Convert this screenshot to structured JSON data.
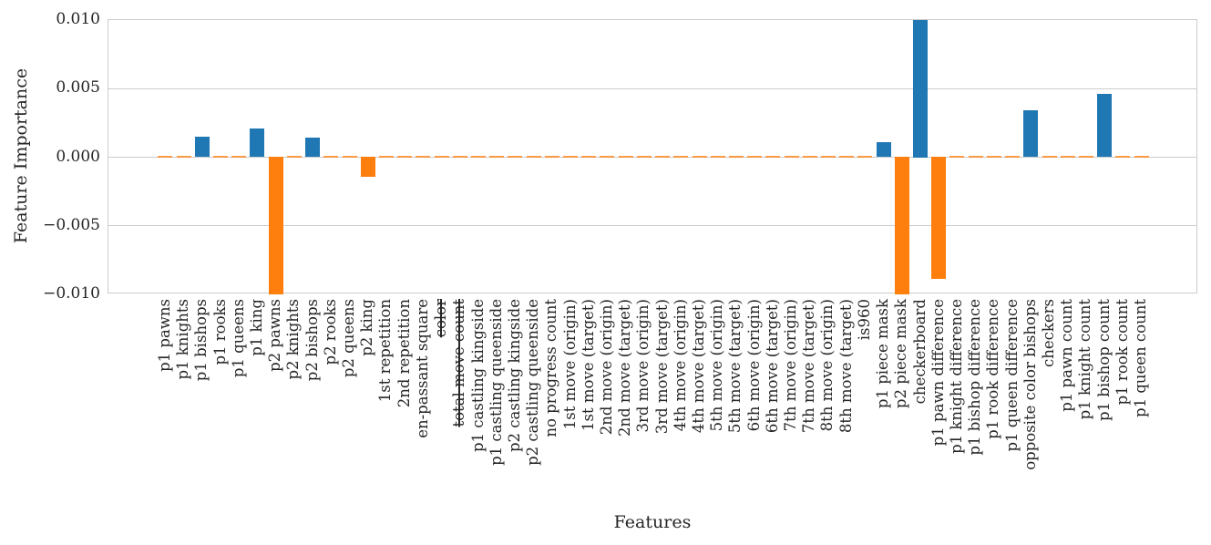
{
  "chart_data": {
    "type": "bar",
    "title": "",
    "xlabel": "Features",
    "ylabel": "Feature Importance",
    "ylim": [
      -0.01,
      0.01
    ],
    "yticks": [
      0.01,
      0.005,
      0.0,
      -0.005,
      -0.01
    ],
    "ytick_labels": [
      "0.010",
      "0.005",
      "0.000",
      "−0.005",
      "−0.010"
    ],
    "grid": true,
    "legend": "none",
    "positive_color": "#1f77b4",
    "negative_color": "#ff7f0e",
    "grid_color": "#cccccc",
    "text_color": "#262626",
    "categories": [
      "p1 pawns",
      "p1 knights",
      "p1 bishops",
      "p1 rooks",
      "p1 queens",
      "p1 king",
      "p2 pawns",
      "p2 knights",
      "p2 bishops",
      "p2 rooks",
      "p2 queens",
      "p2 king",
      "1st repetition",
      "2nd repetition",
      "en-passant square",
      "color",
      "total move count",
      "p1 castling kingside",
      "p1 castling queenside",
      "p2 castling kingside",
      "p2 castling queenside",
      "no progress count",
      "1st move (origin)",
      "1st move (target)",
      "2nd move (origin)",
      "2nd move (target)",
      "3rd move (origin)",
      "3rd move (target)",
      "4th move (origin)",
      "4th move (target)",
      "5th move (origin)",
      "5th move (target)",
      "6th move (origin)",
      "6th move (target)",
      "7th move (origin)",
      "7th move (target)",
      "8th move (origin)",
      "8th move (target)",
      "is960",
      "p1 piece mask",
      "p2 piece mask",
      "checkerboard",
      "p1 pawn difference",
      "p1 knight difference",
      "p1 bishop difference",
      "p1 rook difference",
      "p1 queen difference",
      "opposite color bishops",
      "checkers",
      "p1 pawn count",
      "p1 knight count",
      "p1 bishop count",
      "p1 rook count",
      "p1 queen count"
    ],
    "values": [
      0,
      0,
      0.0015,
      0,
      0,
      0.0021,
      -0.01,
      0,
      0.0014,
      0,
      0,
      -0.0014,
      0,
      0,
      0,
      0,
      0,
      0,
      0,
      0,
      0,
      0,
      0,
      0,
      0,
      0,
      0,
      0,
      0,
      0,
      0,
      0,
      0,
      0,
      0,
      0,
      0,
      0,
      0,
      0.0011,
      -0.01,
      0.01,
      -0.0089,
      0,
      0,
      0,
      0,
      0.0034,
      0,
      0,
      0,
      0.0046,
      0,
      0
    ],
    "strikethrough_categories": [
      "color",
      "total move count"
    ],
    "clipped_categories": [
      "p2 pawns",
      "p2 piece mask",
      "checkerboard"
    ]
  }
}
